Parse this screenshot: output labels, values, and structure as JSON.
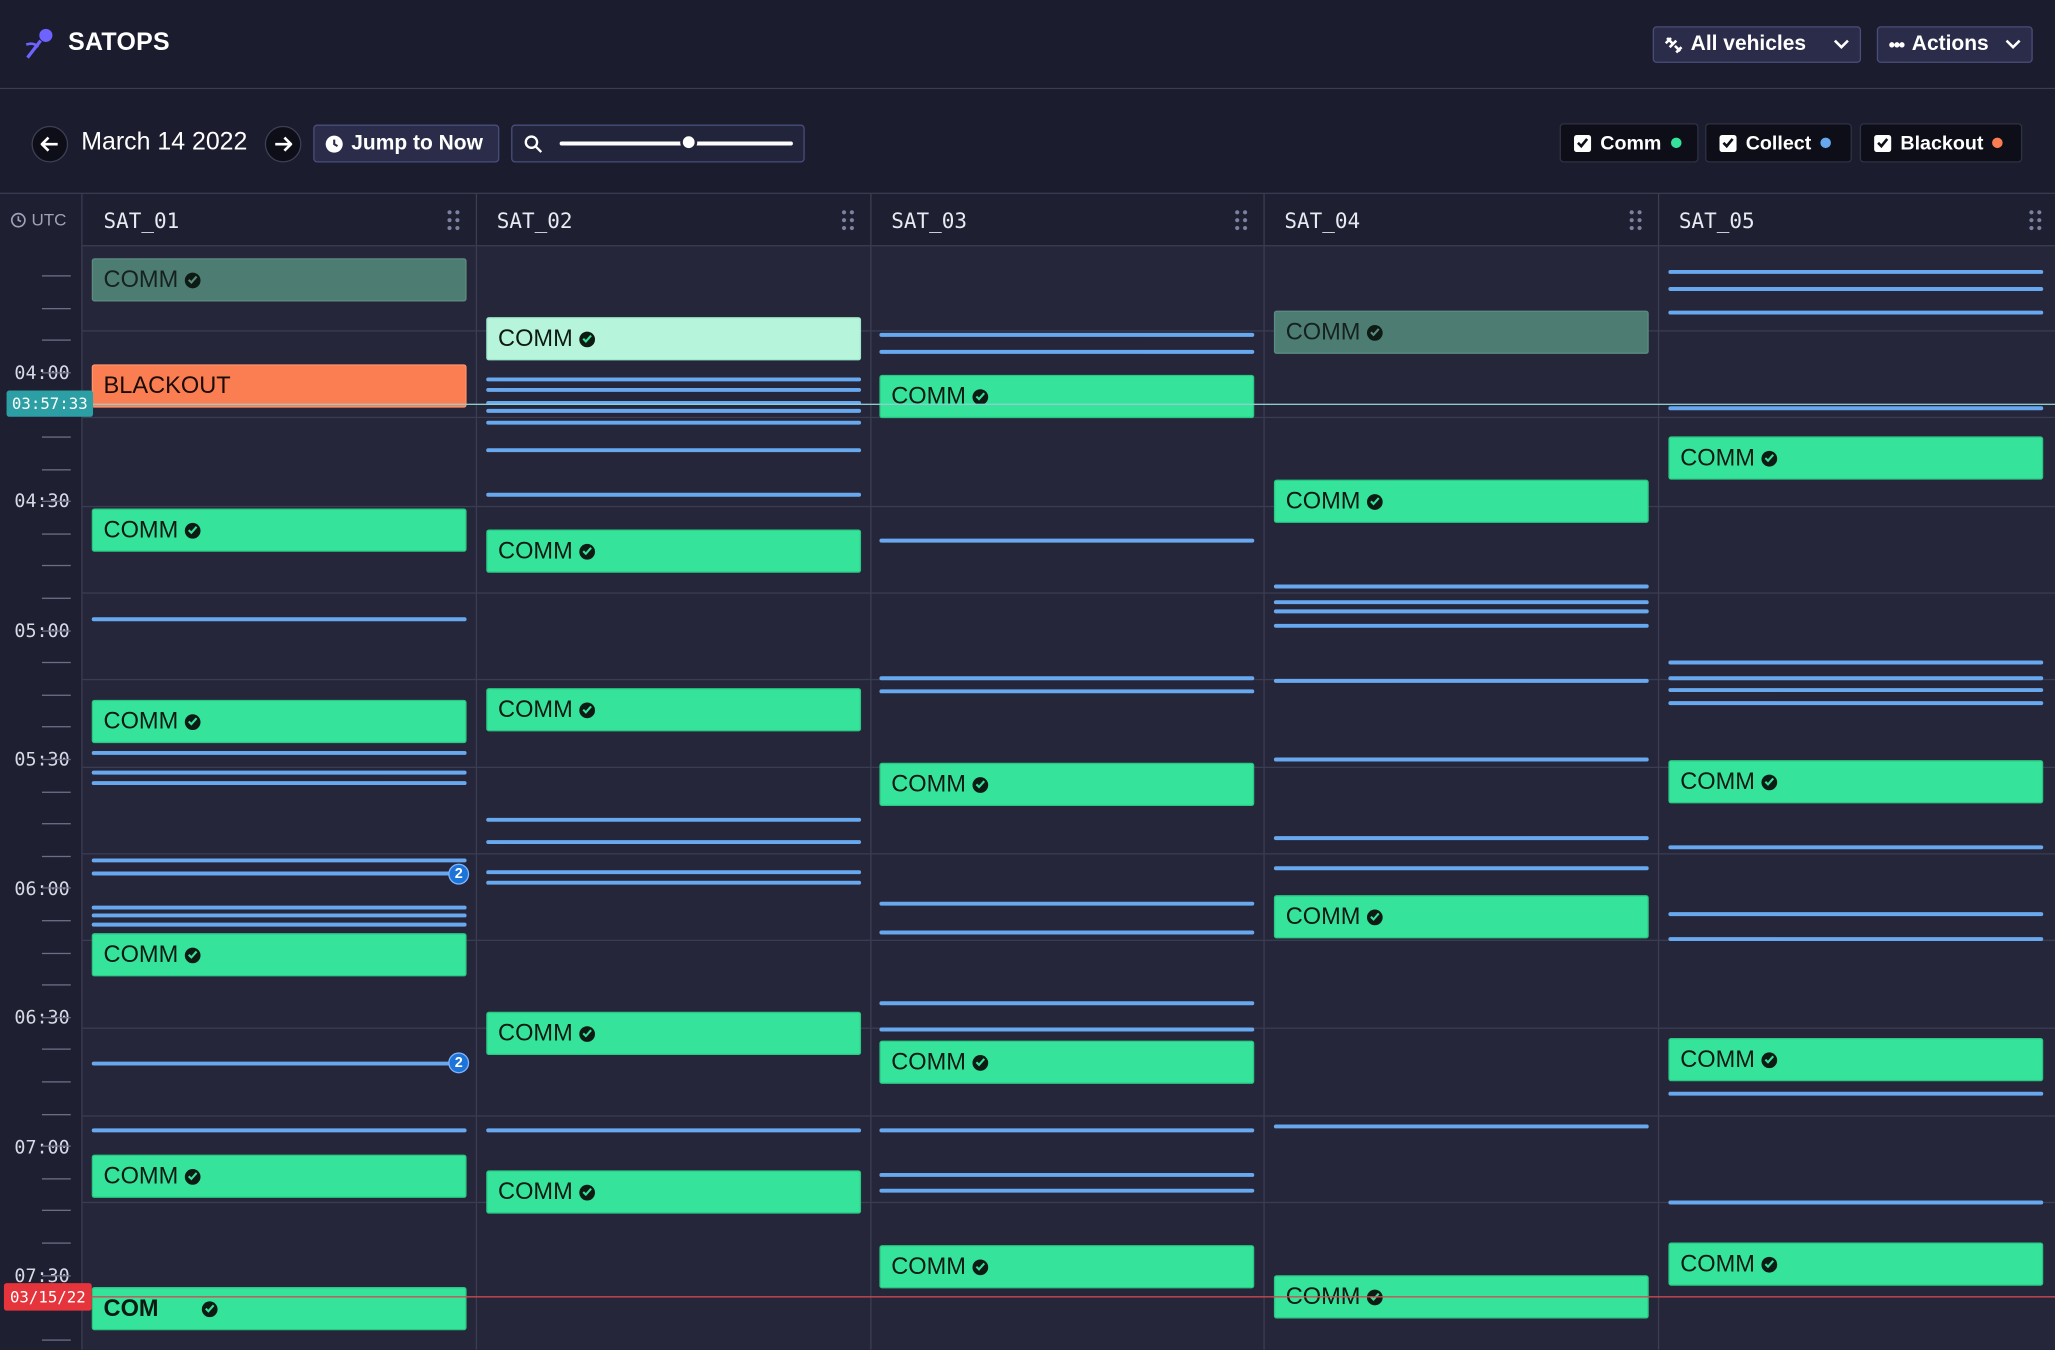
{
  "app": {
    "name": "SATOPS"
  },
  "header": {
    "vehicles_label": "All vehicles",
    "actions_label": "Actions"
  },
  "toolbar": {
    "date": "March 14 2022",
    "jump_label": "Jump to Now",
    "zoom_level": 0.55,
    "filters": [
      {
        "label": "Comm",
        "color": "#35e39a",
        "checked": true
      },
      {
        "label": "Collect",
        "color": "#68a8ee",
        "checked": true
      },
      {
        "label": "Blackout",
        "color": "#fb7e52",
        "checked": true
      }
    ]
  },
  "timeline": {
    "timezone": "UTC",
    "times": [
      "04:00",
      "04:30",
      "05:00",
      "05:30",
      "06:00",
      "06:30",
      "07:00",
      "07:30"
    ],
    "now_marker": "03:57:33",
    "day_marker": "03/15/22",
    "columns": [
      "SAT_01",
      "SAT_02",
      "SAT_03",
      "SAT_04",
      "SAT_05"
    ],
    "pass_label": "COMM",
    "pass_label_truncated": "COM",
    "blackout_label": "BLACKOUT",
    "collect_group_count": "2"
  },
  "colors": {
    "comm": "#35e39a",
    "collect": "#68a8ee",
    "blackout": "#fb7e52",
    "now": "#2c9fa5",
    "day": "#e5343c"
  }
}
